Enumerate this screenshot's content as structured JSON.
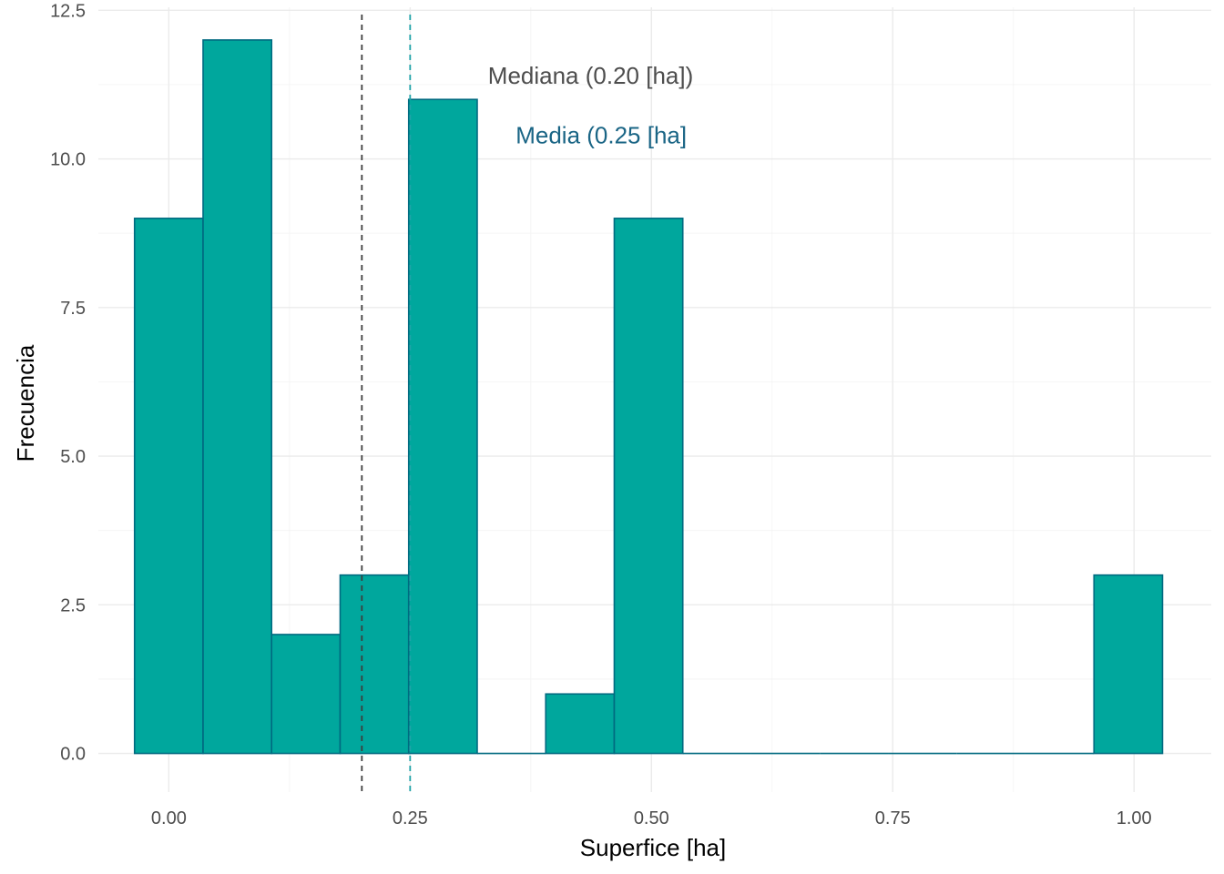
{
  "chart_data": {
    "type": "bar",
    "subtype": "histogram",
    "title": "",
    "xlabel": "Superfice [ha]",
    "ylabel": "Frecuencia",
    "xlim": [
      -0.073,
      1.08
    ],
    "ylim": [
      -0.65,
      12.55
    ],
    "x_ticks": [
      0.0,
      0.25,
      0.5,
      0.75,
      1.0
    ],
    "x_tick_labels": [
      "0.00",
      "0.25",
      "0.50",
      "0.75",
      "1.00"
    ],
    "y_ticks": [
      0.0,
      2.5,
      5.0,
      7.5,
      10.0,
      12.5
    ],
    "y_tick_labels": [
      "0.0",
      "2.5",
      "5.0",
      "7.5",
      "10.0",
      "12.5"
    ],
    "grid": true,
    "bins": [
      {
        "x0": -0.0355,
        "x1": 0.0355,
        "count": 9
      },
      {
        "x0": 0.0355,
        "x1": 0.1065,
        "count": 12
      },
      {
        "x0": 0.1065,
        "x1": 0.1775,
        "count": 2
      },
      {
        "x0": 0.1775,
        "x1": 0.2485,
        "count": 3
      },
      {
        "x0": 0.2485,
        "x1": 0.3195,
        "count": 11
      },
      {
        "x0": 0.3195,
        "x1": 0.3905,
        "count": 0
      },
      {
        "x0": 0.3905,
        "x1": 0.4615,
        "count": 1
      },
      {
        "x0": 0.4615,
        "x1": 0.5325,
        "count": 9
      },
      {
        "x0": 0.5325,
        "x1": 0.6035,
        "count": 0
      },
      {
        "x0": 0.6035,
        "x1": 0.6745,
        "count": 0
      },
      {
        "x0": 0.6745,
        "x1": 0.7455,
        "count": 0
      },
      {
        "x0": 0.7455,
        "x1": 0.8165,
        "count": 0
      },
      {
        "x0": 0.8165,
        "x1": 0.8875,
        "count": 0
      },
      {
        "x0": 0.8875,
        "x1": 0.9585,
        "count": 0
      },
      {
        "x0": 0.9585,
        "x1": 1.0295,
        "count": 3
      }
    ],
    "bar_fill": "#00a79d",
    "bar_stroke": "#006a80",
    "reference_lines": [
      {
        "x": 0.2,
        "color": "#3d3d3d",
        "style": "dashed"
      },
      {
        "x": 0.25,
        "color": "#1fa3a8",
        "style": "dashed"
      }
    ],
    "annotations": [
      {
        "text": "Mediana (0.20 [ha])",
        "x": 0.437,
        "y": 11.4,
        "color": "#4d4d4d"
      },
      {
        "text": "Media (0.25 [ha]",
        "x": 0.448,
        "y": 10.4,
        "color": "#1a6585"
      }
    ]
  }
}
